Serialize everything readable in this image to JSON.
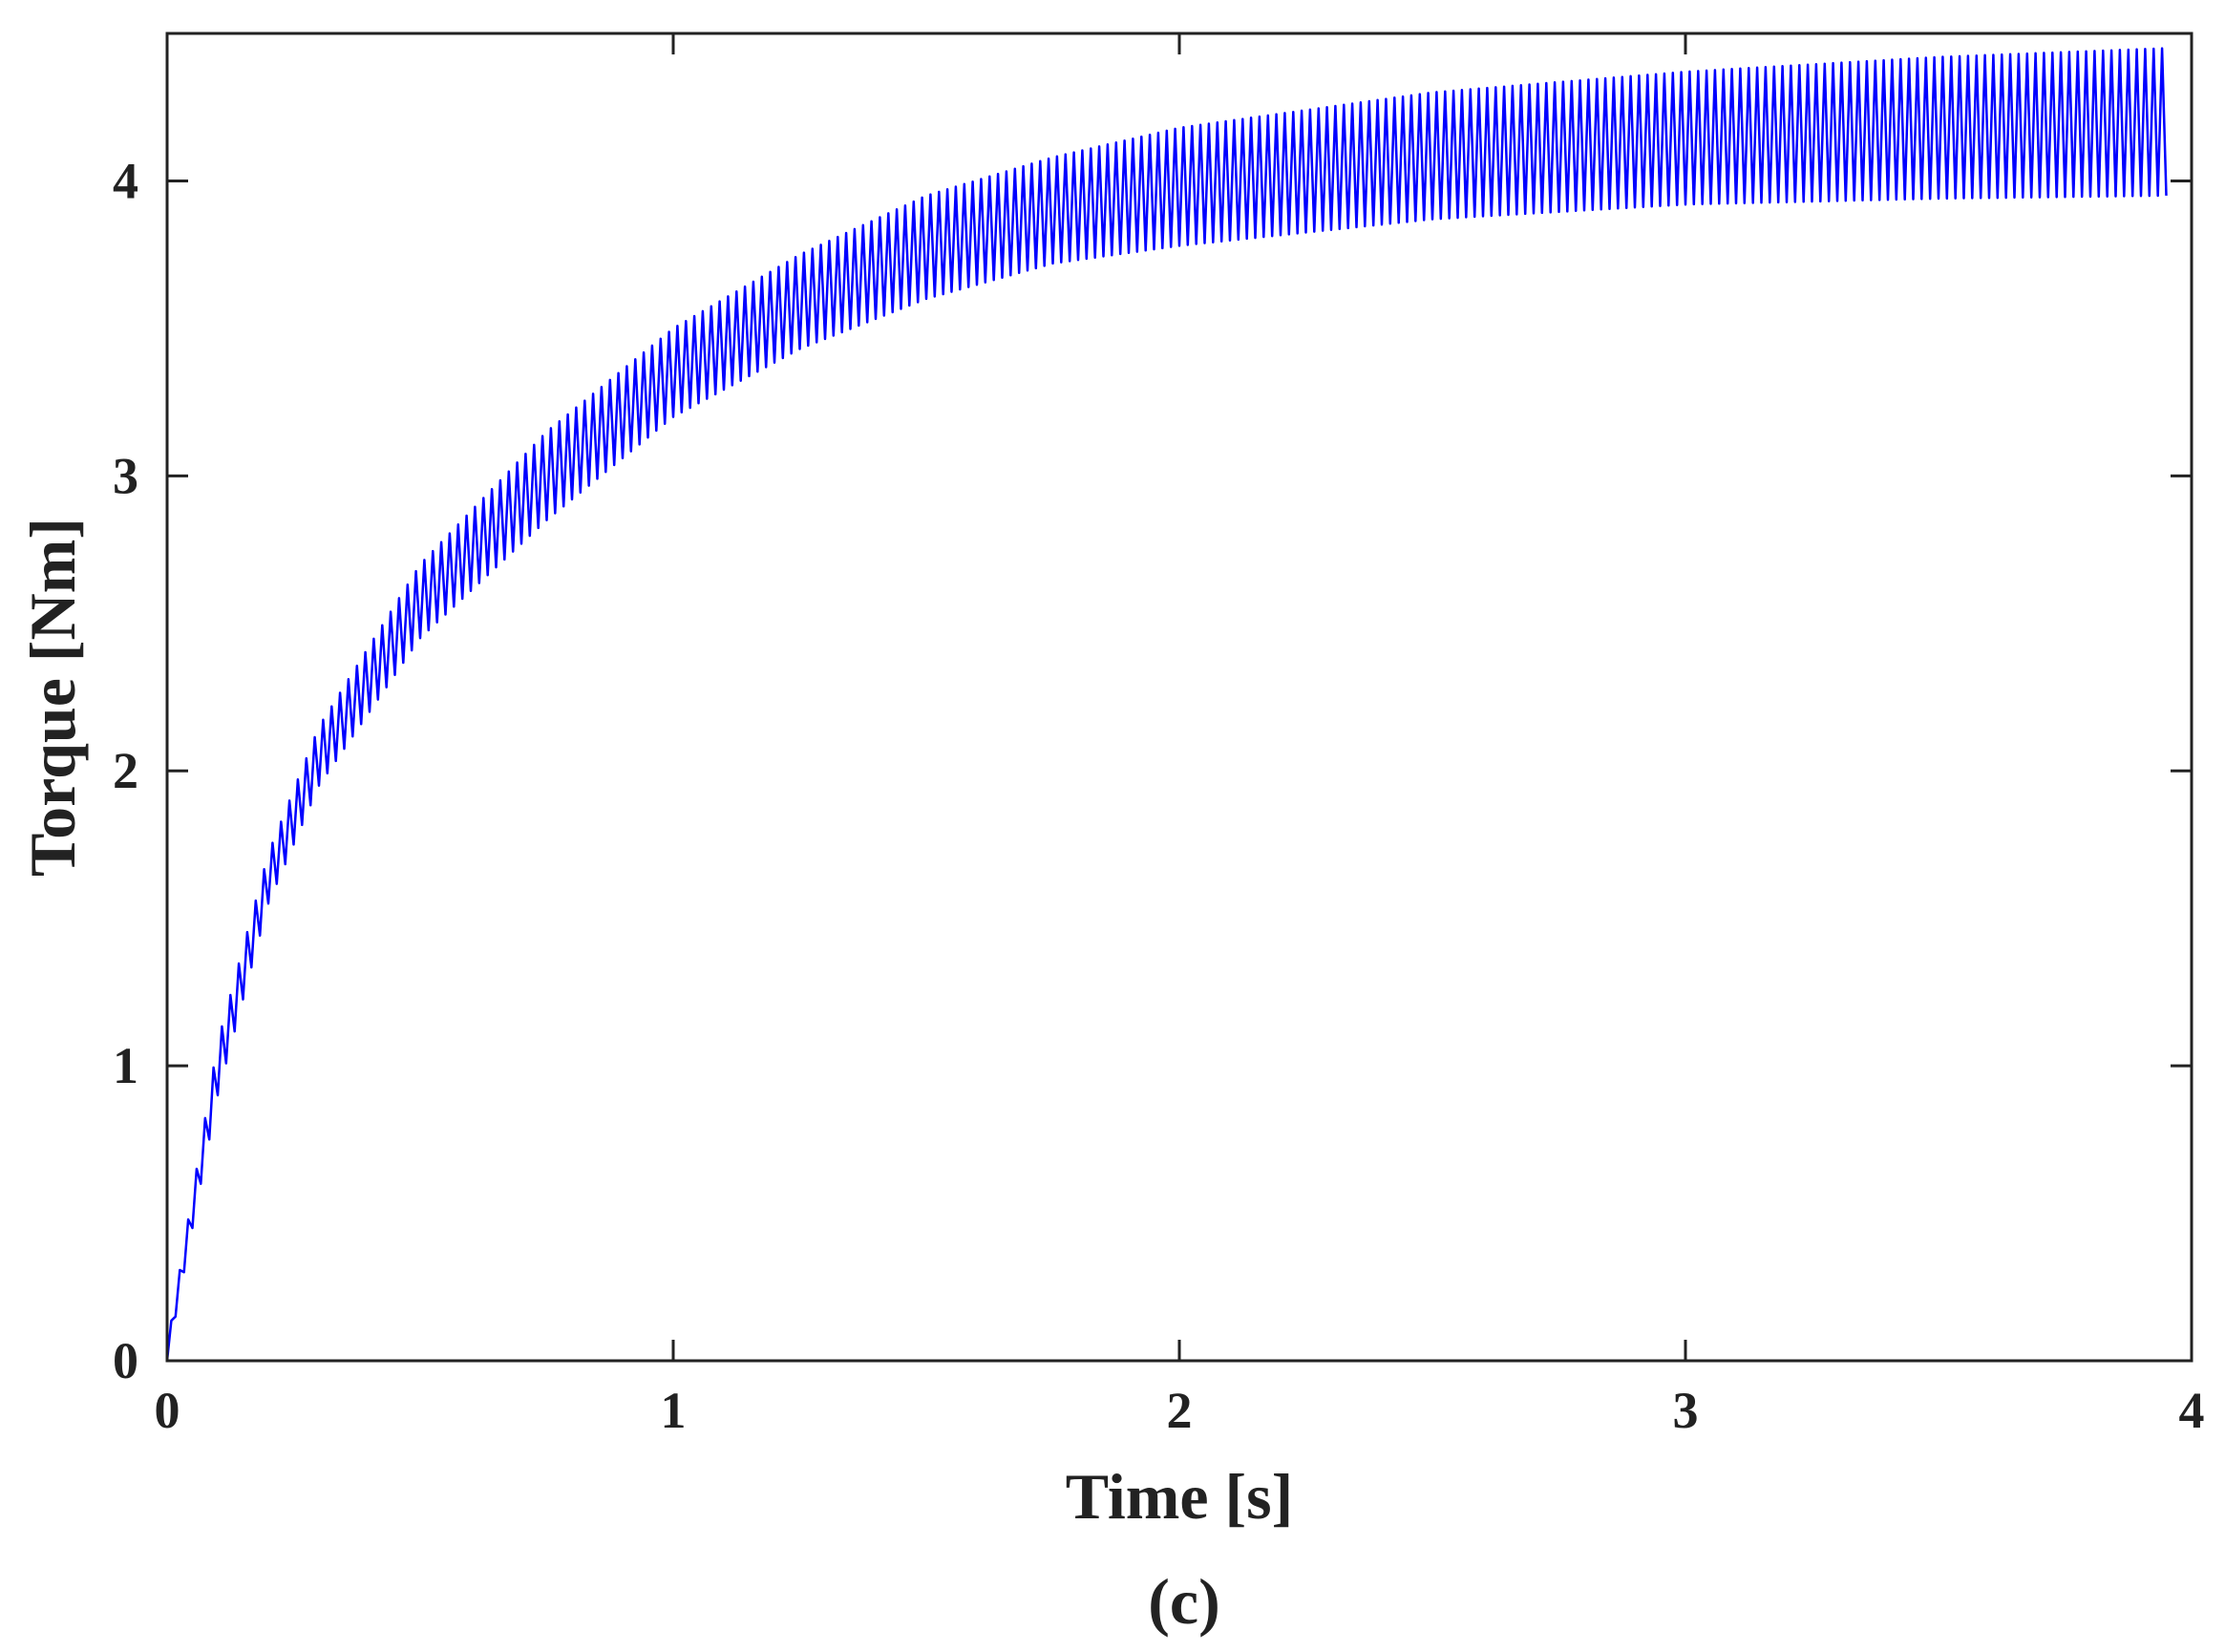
{
  "chart_data": {
    "type": "line",
    "title": "",
    "xlabel": "Time [s]",
    "ylabel": "Torque [Nm]",
    "caption": "(c)",
    "xlim": [
      0,
      4
    ],
    "ylim": [
      0,
      4.5
    ],
    "xticks": [
      0,
      1,
      2,
      3,
      4
    ],
    "yticks": [
      0,
      1,
      2,
      3,
      4
    ],
    "xtick_labels": [
      "0",
      "1",
      "2",
      "3",
      "4"
    ],
    "ytick_labels": [
      "0",
      "1",
      "2",
      "3",
      "4"
    ],
    "grid": false,
    "legend": "none",
    "series": [
      {
        "color": "#0000ff",
        "oscillating": true,
        "oscillation_cycles_per_second": 60,
        "x_end": 3.95,
        "envelope": {
          "x": [
            0.0,
            0.1,
            0.2,
            0.3,
            0.5,
            0.75,
            1.0,
            1.25,
            1.5,
            1.75,
            2.0,
            2.5,
            3.0,
            3.5,
            3.95
          ],
          "upper": [
            0.05,
            1.08,
            1.72,
            2.15,
            2.7,
            3.15,
            3.5,
            3.75,
            3.95,
            4.08,
            4.18,
            4.3,
            4.37,
            4.42,
            4.45
          ],
          "lower": [
            0.0,
            0.9,
            1.55,
            1.95,
            2.45,
            2.85,
            3.2,
            3.43,
            3.6,
            3.72,
            3.78,
            3.87,
            3.92,
            3.94,
            3.95
          ]
        }
      }
    ]
  }
}
